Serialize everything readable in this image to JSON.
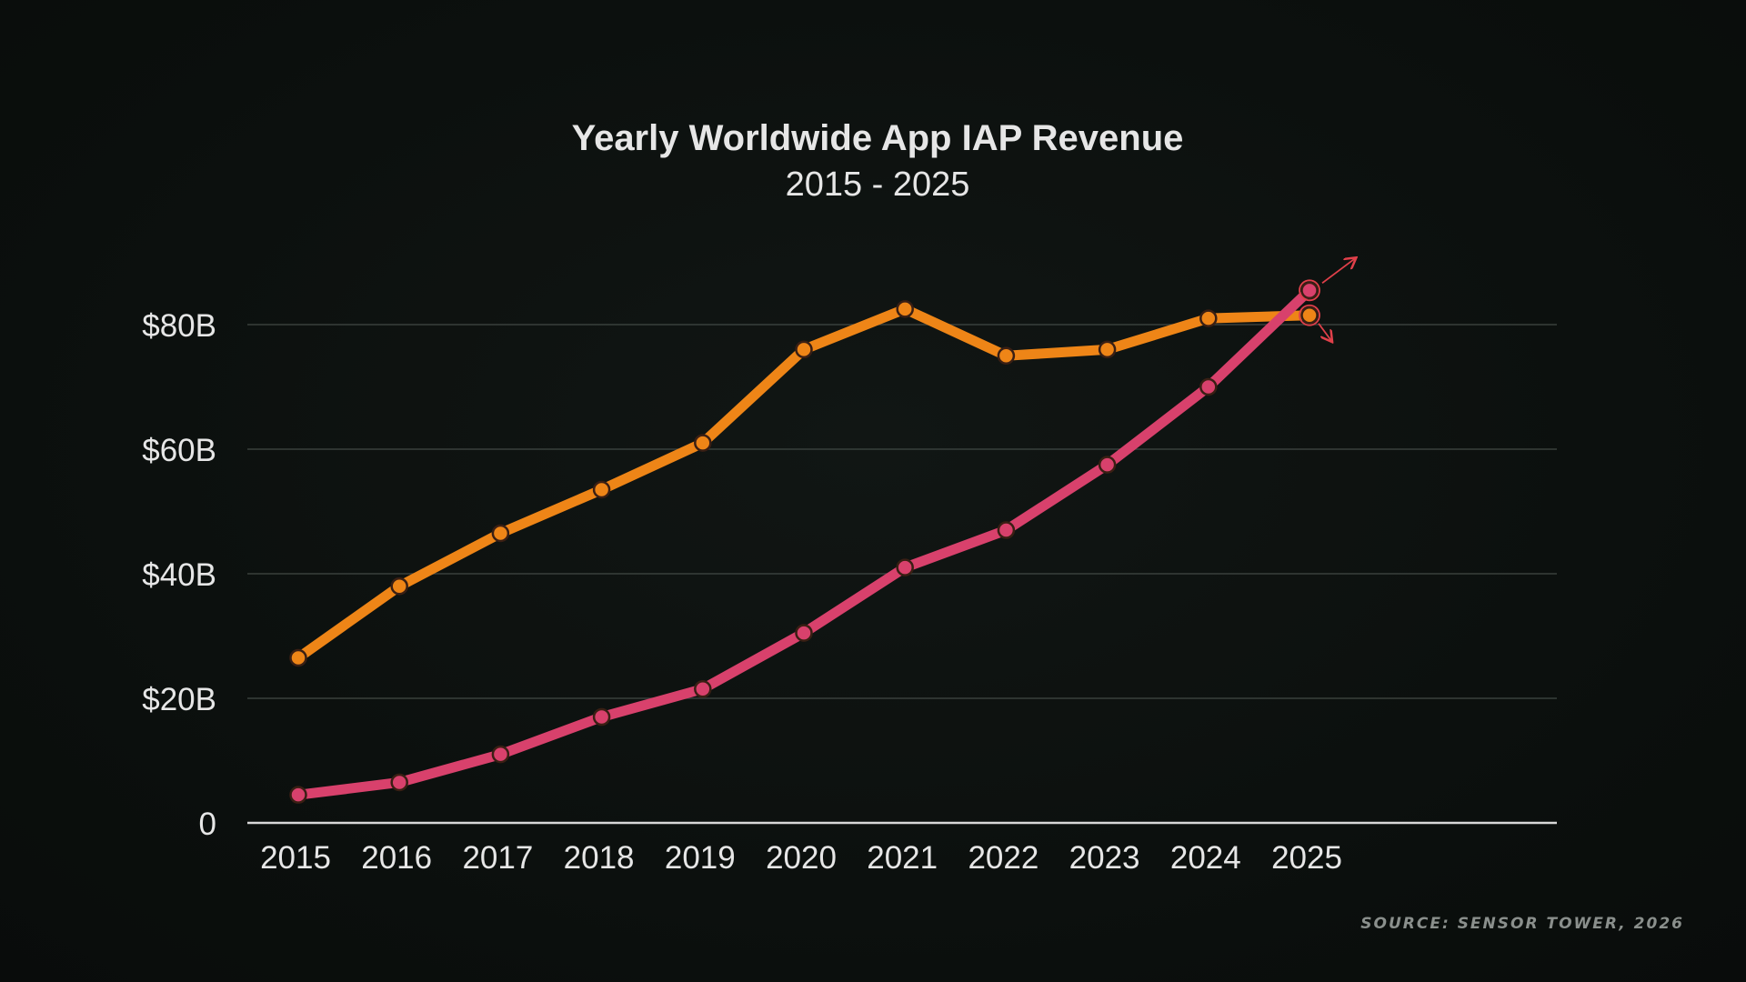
{
  "colors": {
    "background": "#0b0f0d",
    "text": "#e6e6e6",
    "grid": "#39403c",
    "series_0": "#ee8517",
    "series_1": "#d8416c",
    "source": "#8a8f8c",
    "arrow": "#e0404a"
  },
  "chart_data": {
    "type": "line",
    "title": "Yearly Worldwide App IAP Revenue",
    "subtitle": "2015 - 2025",
    "xlabel": "",
    "ylabel": "",
    "categories": [
      "2015",
      "2016",
      "2017",
      "2018",
      "2019",
      "2020",
      "2021",
      "2022",
      "2023",
      "2024",
      "2025"
    ],
    "y_ticks": [
      0,
      20,
      40,
      60,
      80
    ],
    "y_tick_labels": [
      "0",
      "$20B",
      "$40B",
      "$60B",
      "$80B"
    ],
    "ylim": [
      0,
      80
    ],
    "grid": true,
    "legend": "none",
    "series": [
      {
        "color": "#ee8517",
        "values": [
          26.5,
          38,
          46.5,
          53.5,
          61,
          76,
          82.5,
          75,
          76,
          81,
          81.5
        ]
      },
      {
        "color": "#d8416c",
        "values": [
          4.5,
          6.5,
          11,
          17,
          21.5,
          30.5,
          41,
          47,
          57.5,
          70,
          85.5
        ]
      }
    ],
    "annotations": [
      "up-arrow on series 2 endpoint",
      "down-arrow on series 1 endpoint"
    ]
  },
  "source_note": "SOURCE: SENSOR TOWER, 2026"
}
